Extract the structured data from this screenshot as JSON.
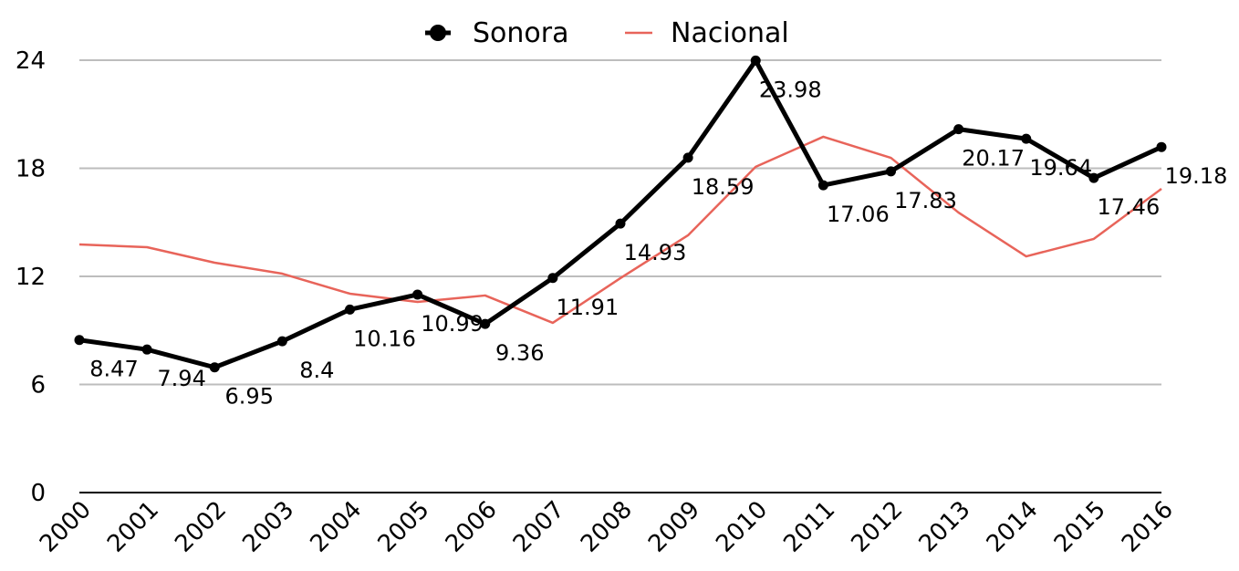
{
  "chart_data": {
    "type": "line",
    "categories": [
      "2000",
      "2001",
      "2002",
      "2003",
      "2004",
      "2005",
      "2006",
      "2007",
      "2008",
      "2009",
      "2010",
      "2011",
      "2012",
      "2013",
      "2014",
      "2015",
      "2016"
    ],
    "series": [
      {
        "name": "Sonora",
        "color": "#000000",
        "values": [
          8.47,
          7.94,
          6.95,
          8.4,
          10.16,
          10.99,
          9.36,
          11.91,
          14.93,
          18.59,
          23.98,
          17.06,
          17.83,
          20.17,
          19.64,
          17.46,
          19.18
        ]
      },
      {
        "name": "Nacional",
        "color": "#e8645a",
        "values": [
          13.77,
          13.62,
          12.76,
          12.15,
          11.04,
          10.58,
          10.94,
          9.42,
          11.9,
          14.28,
          18.08,
          19.75,
          18.58,
          15.54,
          13.11,
          14.08,
          16.86
        ]
      }
    ],
    "ylim": [
      0,
      24
    ],
    "yticks": [
      0,
      6,
      12,
      18,
      24
    ],
    "grid": true,
    "legend": "top"
  }
}
